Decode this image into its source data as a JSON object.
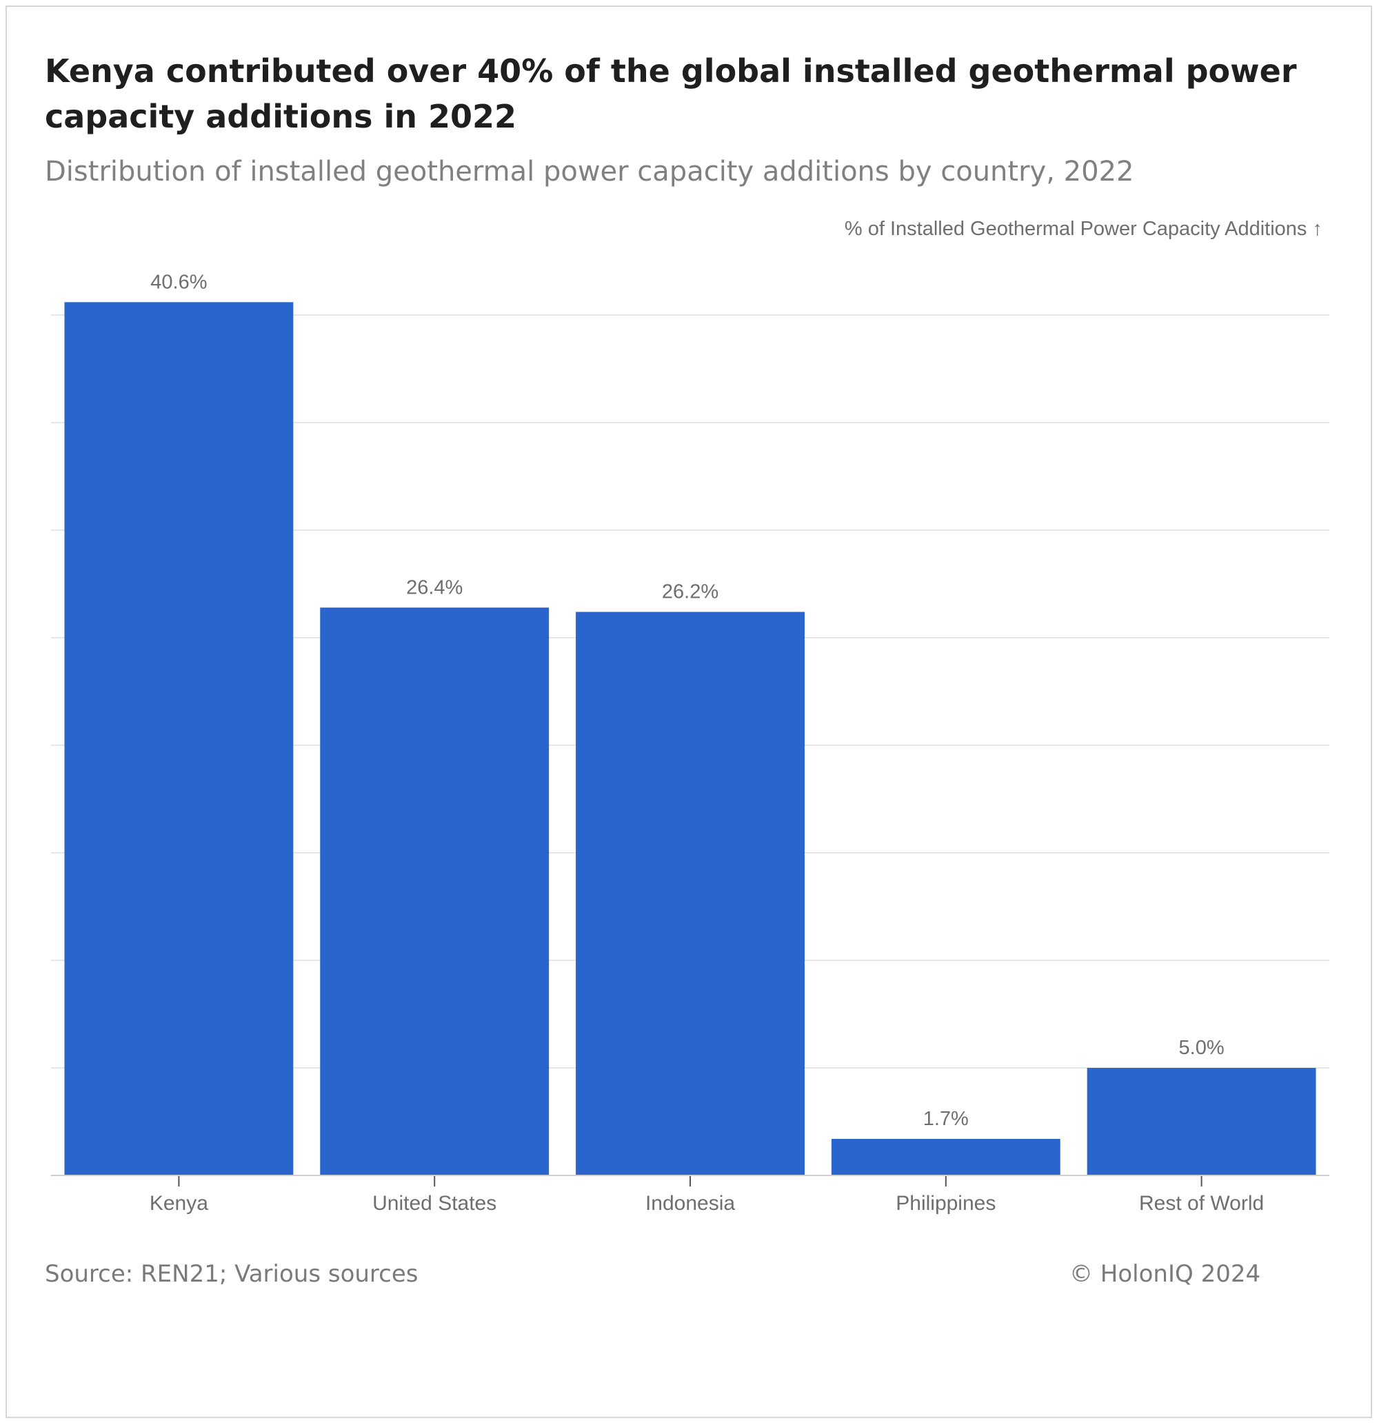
{
  "header": {
    "title": "Kenya contributed over 40% of the global installed geothermal power capacity additions in 2022",
    "subtitle": "Distribution of installed geothermal power capacity additions by country, 2022"
  },
  "footer": {
    "source": "Source: REN21; Various sources",
    "copyright": "© HolonIQ 2024"
  },
  "colors": {
    "bar": "#2a65ce",
    "grid": "#e6e6e6",
    "text_muted": "#6e6e6e"
  },
  "chart_data": {
    "type": "bar",
    "title": "Kenya contributed over 40% of the global installed geothermal power capacity additions in 2022",
    "subtitle": "Distribution of installed geothermal power capacity additions by country, 2022",
    "ylabel": "% of Installed Geothermal Power Capacity Additions ↑",
    "xlabel": "",
    "categories": [
      "Kenya",
      "United States",
      "Indonesia",
      "Philippines",
      "Rest of World"
    ],
    "values": [
      40.6,
      26.4,
      26.2,
      1.7,
      5.0
    ],
    "labels": [
      "40.6%",
      "26.4%",
      "26.2%",
      "1.7%",
      "5.0%"
    ],
    "ylim": [
      0,
      40
    ],
    "gridlines": [
      0,
      5,
      10,
      15,
      20,
      25,
      30,
      35,
      40
    ],
    "grid": true
  }
}
